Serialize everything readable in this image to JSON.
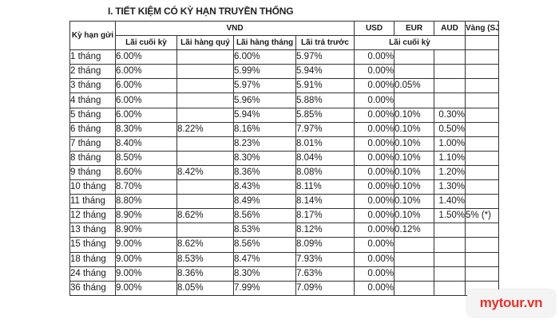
{
  "title": "I. TIẾT KIỆM CÓ KỲ HẠN TRUYỀN THỐNG",
  "headers": {
    "term": "Kỳ hạn gửi",
    "vnd": "VND",
    "usd": "USD",
    "eur": "EUR",
    "aud": "AUD",
    "gold": "Vàng (SJC)",
    "lai_cuoi_ky": "Lãi cuối kỳ",
    "lai_hang_quy": "Lãi hàng quý",
    "lai_hang_thang": "Lãi hàng tháng",
    "lai_tra_truoc": "Lãi trả trước",
    "lai_cuoi_ky_foreign": "Lãi cuối kỳ"
  },
  "rows": [
    {
      "term": "1 tháng",
      "cuoi_ky": "6.00%",
      "hang_quy": "",
      "hang_thang": "6.00%",
      "tra_truoc": "5.97%",
      "usd": "0.00%",
      "eur": "",
      "aud": "",
      "gold": ""
    },
    {
      "term": "2 tháng",
      "cuoi_ky": "6.00%",
      "hang_quy": "",
      "hang_thang": "5.99%",
      "tra_truoc": "5.94%",
      "usd": "0.00%",
      "eur": "",
      "aud": "",
      "gold": ""
    },
    {
      "term": "3 tháng",
      "cuoi_ky": "6.00%",
      "hang_quy": "",
      "hang_thang": "5.97%",
      "tra_truoc": "5.91%",
      "usd": "0.00%",
      "eur": "0.05%",
      "aud": "",
      "gold": ""
    },
    {
      "term": "4 tháng",
      "cuoi_ky": "6.00%",
      "hang_quy": "",
      "hang_thang": "5.96%",
      "tra_truoc": "5.88%",
      "usd": "0.00%",
      "eur": "",
      "aud": "",
      "gold": ""
    },
    {
      "term": "5 tháng",
      "cuoi_ky": "6.00%",
      "hang_quy": "",
      "hang_thang": "5.94%",
      "tra_truoc": "5.85%",
      "usd": "0.00%",
      "eur": "0.10%",
      "aud": "0.30%",
      "gold": ""
    },
    {
      "term": "6 tháng",
      "cuoi_ky": "8.30%",
      "hang_quy": "8.22%",
      "hang_thang": "8.16%",
      "tra_truoc": "7.97%",
      "usd": "0.00%",
      "eur": "0.10%",
      "aud": "0.50%",
      "gold": ""
    },
    {
      "term": "7 tháng",
      "cuoi_ky": "8.40%",
      "hang_quy": "",
      "hang_thang": "8.23%",
      "tra_truoc": "8.01%",
      "usd": "0.00%",
      "eur": "0.10%",
      "aud": "1.00%",
      "gold": ""
    },
    {
      "term": "8 tháng",
      "cuoi_ky": "8.50%",
      "hang_quy": "",
      "hang_thang": "8.30%",
      "tra_truoc": "8.04%",
      "usd": "0.00%",
      "eur": "0.10%",
      "aud": "1.10%",
      "gold": ""
    },
    {
      "term": "9 tháng",
      "cuoi_ky": "8.60%",
      "hang_quy": "8.42%",
      "hang_thang": "8.36%",
      "tra_truoc": "8.08%",
      "usd": "0.00%",
      "eur": "0.10%",
      "aud": "1.20%",
      "gold": ""
    },
    {
      "term": "10 tháng",
      "cuoi_ky": "8.70%",
      "hang_quy": "",
      "hang_thang": "8.43%",
      "tra_truoc": "8.11%",
      "usd": "0.00%",
      "eur": "0.10%",
      "aud": "1.30%",
      "gold": ""
    },
    {
      "term": "11 tháng",
      "cuoi_ky": "8.80%",
      "hang_quy": "",
      "hang_thang": "8.49%",
      "tra_truoc": "8.14%",
      "usd": "0.00%",
      "eur": "0.10%",
      "aud": "1.40%",
      "gold": ""
    },
    {
      "term": "12 tháng",
      "cuoi_ky": "8.90%",
      "hang_quy": "8.62%",
      "hang_thang": "8.56%",
      "tra_truoc": "8.17%",
      "usd": "0.00%",
      "eur": "0.10%",
      "aud": "1.50%",
      "gold": "5% (*)"
    },
    {
      "term": "13 tháng",
      "cuoi_ky": "8.90%",
      "hang_quy": "",
      "hang_thang": "8.53%",
      "tra_truoc": "8.12%",
      "usd": "0.00%",
      "eur": "0.12%",
      "aud": "",
      "gold": ""
    },
    {
      "term": "15 tháng",
      "cuoi_ky": "9.00%",
      "hang_quy": "8.62%",
      "hang_thang": "8.56%",
      "tra_truoc": "8.09%",
      "usd": "0.00%",
      "eur": "",
      "aud": "",
      "gold": ""
    },
    {
      "term": "18 tháng",
      "cuoi_ky": "9.00%",
      "hang_quy": "8.53%",
      "hang_thang": "8.47%",
      "tra_truoc": "7.93%",
      "usd": "0.00%",
      "eur": "",
      "aud": "",
      "gold": ""
    },
    {
      "term": "24 tháng",
      "cuoi_ky": "9.00%",
      "hang_quy": "8.36%",
      "hang_thang": "8.30%",
      "tra_truoc": "7.63%",
      "usd": "0.00%",
      "eur": "",
      "aud": "",
      "gold": ""
    },
    {
      "term": "36  tháng",
      "cuoi_ky": "9.00%",
      "hang_quy": "8.05%",
      "hang_thang": "7.99%",
      "tra_truoc": "7.09%",
      "usd": "0.00%",
      "eur": "",
      "aud": "",
      "gold": ""
    }
  ],
  "watermark": {
    "text": "mytour.vn"
  }
}
